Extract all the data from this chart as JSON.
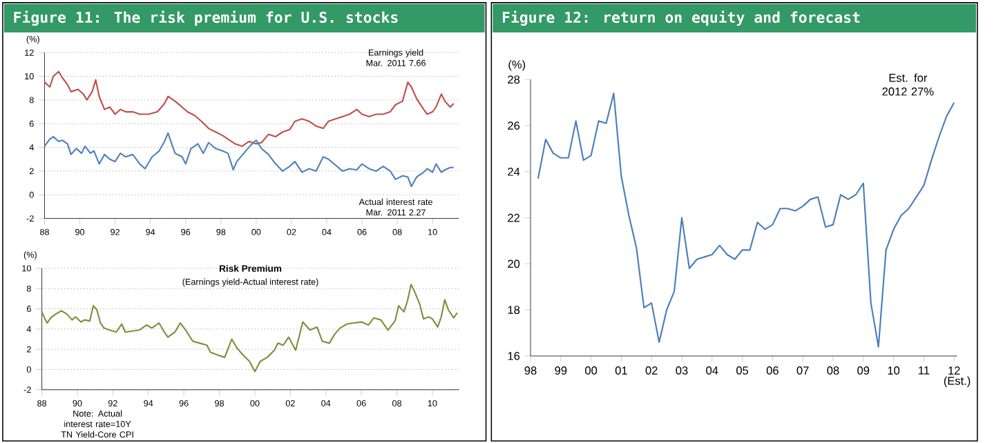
{
  "chart_data": [
    {
      "type": "line",
      "title": "Figure 11: The risk premium for U.S. stocks",
      "ylabel": "(%)",
      "xlim": [
        1988,
        2011.5
      ],
      "ylim": [
        -2,
        12
      ],
      "yticks": [
        -2,
        0,
        2,
        4,
        6,
        8,
        10,
        12
      ],
      "xticks": [
        {
          "value": 1988,
          "label": "88"
        },
        {
          "value": 1990,
          "label": "90"
        },
        {
          "value": 1992,
          "label": "92"
        },
        {
          "value": 1994,
          "label": "94"
        },
        {
          "value": 1996,
          "label": "96"
        },
        {
          "value": 1998,
          "label": "98"
        },
        {
          "value": 2000,
          "label": "00"
        },
        {
          "value": 2002,
          "label": "02"
        },
        {
          "value": 2004,
          "label": "04"
        },
        {
          "value": 2006,
          "label": "06"
        },
        {
          "value": 2008,
          "label": "08"
        },
        {
          "value": 2010,
          "label": "10"
        }
      ],
      "grid": "y",
      "annotations": [
        "Earnings yield Mar. 2011 7.66",
        "Actual interest rate Mar. 2011 2.27"
      ],
      "series": [
        {
          "color": "#c0504d",
          "x": [
            1988.0,
            1988.3,
            1988.5,
            1988.8,
            1989.0,
            1989.3,
            1989.5,
            1989.9,
            1990.2,
            1990.4,
            1990.7,
            1990.9,
            1991.1,
            1991.4,
            1991.7,
            1992.0,
            1992.3,
            1992.6,
            1993.0,
            1993.4,
            1993.9,
            1994.4,
            1994.8,
            1995.0,
            1995.4,
            1995.8,
            1996.1,
            1996.5,
            1996.9,
            1997.3,
            1997.7,
            1998.1,
            1998.4,
            1998.8,
            1999.2,
            1999.6,
            2000.0,
            2000.3,
            2000.7,
            2001.1,
            2001.5,
            2001.9,
            2002.2,
            2002.6,
            2003.0,
            2003.4,
            2003.8,
            2004.1,
            2004.5,
            2004.9,
            2005.3,
            2005.7,
            2006.0,
            2006.4,
            2006.8,
            2007.2,
            2007.6,
            2007.9,
            2008.3,
            2008.6,
            2008.8,
            2009.1,
            2009.5,
            2009.7,
            2010.0,
            2010.2,
            2010.5,
            2010.7,
            2011.0,
            2011.2
          ],
          "values": [
            9.5,
            9.1,
            10.0,
            10.4,
            9.9,
            9.3,
            8.7,
            8.9,
            8.5,
            8.0,
            8.7,
            9.7,
            8.3,
            7.2,
            7.4,
            6.8,
            7.2,
            7.0,
            7.0,
            6.8,
            6.8,
            7.0,
            7.7,
            8.3,
            7.9,
            7.4,
            7.0,
            6.7,
            6.2,
            5.6,
            5.3,
            5.0,
            4.7,
            4.3,
            4.1,
            4.5,
            4.3,
            4.4,
            5.1,
            4.9,
            5.3,
            5.5,
            6.2,
            6.4,
            6.2,
            5.8,
            5.6,
            6.2,
            6.4,
            6.6,
            6.8,
            7.2,
            6.8,
            6.6,
            6.8,
            6.8,
            7.0,
            7.6,
            7.9,
            9.5,
            9.1,
            8.1,
            7.2,
            6.8,
            7.0,
            7.4,
            8.5,
            7.9,
            7.4,
            7.7
          ]
        },
        {
          "color": "#4f81bd",
          "x": [
            1988.0,
            1988.3,
            1988.5,
            1988.8,
            1989.0,
            1989.3,
            1989.5,
            1989.8,
            1990.1,
            1990.3,
            1990.6,
            1990.8,
            1991.1,
            1991.4,
            1991.7,
            1992.0,
            1992.3,
            1992.6,
            1993.0,
            1993.4,
            1993.7,
            1994.1,
            1994.5,
            1994.8,
            1995.0,
            1995.4,
            1995.8,
            1996.0,
            1996.3,
            1996.7,
            1997.0,
            1997.3,
            1997.7,
            1998.1,
            1998.4,
            1998.7,
            1998.9,
            1999.3,
            1999.7,
            2000.0,
            2000.3,
            2000.7,
            2001.1,
            2001.5,
            2001.9,
            2002.2,
            2002.6,
            2003.0,
            2003.4,
            2003.8,
            2004.1,
            2004.5,
            2004.9,
            2005.3,
            2005.7,
            2006.0,
            2006.4,
            2006.8,
            2007.2,
            2007.6,
            2007.9,
            2008.3,
            2008.6,
            2008.8,
            2009.1,
            2009.5,
            2009.7,
            2010.0,
            2010.2,
            2010.5,
            2010.7,
            2011.0,
            2011.2
          ],
          "values": [
            4.1,
            4.7,
            4.9,
            4.5,
            4.6,
            4.3,
            3.4,
            3.9,
            3.5,
            4.1,
            3.5,
            3.7,
            2.6,
            3.4,
            3.0,
            2.8,
            3.5,
            3.2,
            3.4,
            2.6,
            2.2,
            3.2,
            3.7,
            4.5,
            5.2,
            3.5,
            3.2,
            2.6,
            3.9,
            4.3,
            3.5,
            4.4,
            3.9,
            3.7,
            3.5,
            2.1,
            2.8,
            3.5,
            4.2,
            4.6,
            3.9,
            3.4,
            2.6,
            2.0,
            2.4,
            2.8,
            1.9,
            2.2,
            2.0,
            3.2,
            3.0,
            2.5,
            2.0,
            2.2,
            2.1,
            2.6,
            2.2,
            2.0,
            2.4,
            2.0,
            1.3,
            1.6,
            1.5,
            0.7,
            1.5,
            1.9,
            2.2,
            1.9,
            2.6,
            1.9,
            2.1,
            2.3,
            2.3
          ]
        }
      ]
    },
    {
      "type": "line",
      "title": "Risk Premium",
      "subtitle": "(Earnings yield-Actual interest rate)",
      "ylabel": "(%)",
      "xlim": [
        1988,
        2011.5
      ],
      "ylim": [
        -2,
        10
      ],
      "yticks": [
        -2,
        0,
        2,
        4,
        6,
        8,
        10
      ],
      "xticks": [
        {
          "value": 1988,
          "label": "88"
        },
        {
          "value": 1990,
          "label": "90"
        },
        {
          "value": 1992,
          "label": "92"
        },
        {
          "value": 1994,
          "label": "94"
        },
        {
          "value": 1996,
          "label": "96"
        },
        {
          "value": 1998,
          "label": "98"
        },
        {
          "value": 2000,
          "label": "00"
        },
        {
          "value": 2002,
          "label": "02"
        },
        {
          "value": 2004,
          "label": "04"
        },
        {
          "value": 2006,
          "label": "06"
        },
        {
          "value": 2008,
          "label": "08"
        },
        {
          "value": 2010,
          "label": "10"
        }
      ],
      "grid": "y",
      "annotations": [
        "Note: Actual interest rate=10Y TN Yield-Core CPI"
      ],
      "series": [
        {
          "color": "#77933c",
          "x": [
            1988.0,
            1988.2,
            1988.3,
            1988.5,
            1988.8,
            1989.1,
            1989.4,
            1989.7,
            1989.9,
            1990.2,
            1990.4,
            1990.7,
            1990.9,
            1991.1,
            1991.3,
            1991.5,
            1991.8,
            1992.2,
            1992.5,
            1992.7,
            1993.1,
            1993.5,
            1993.9,
            1994.2,
            1994.6,
            1994.9,
            1995.1,
            1995.5,
            1995.8,
            1996.1,
            1996.5,
            1996.9,
            1997.3,
            1997.5,
            1997.8,
            1998.3,
            1998.7,
            1999.0,
            1999.3,
            1999.7,
            2000.0,
            2000.3,
            2000.7,
            2001.1,
            2001.3,
            2001.6,
            2001.9,
            2002.3,
            2002.7,
            2003.1,
            2003.5,
            2003.8,
            2004.2,
            2004.5,
            2004.8,
            2005.2,
            2005.6,
            2006.0,
            2006.4,
            2006.7,
            2007.1,
            2007.5,
            2007.9,
            2008.1,
            2008.4,
            2008.6,
            2008.8,
            2009.0,
            2009.3,
            2009.5,
            2009.8,
            2010.0,
            2010.3,
            2010.5,
            2010.7,
            2010.9,
            2011.2,
            2011.4
          ],
          "values": [
            5.7,
            4.9,
            4.6,
            5.1,
            5.5,
            5.8,
            5.5,
            4.9,
            5.2,
            4.7,
            4.9,
            4.8,
            6.3,
            5.9,
            4.6,
            4.1,
            3.9,
            3.7,
            4.5,
            3.7,
            3.8,
            3.9,
            4.4,
            4.1,
            4.6,
            3.7,
            3.2,
            3.7,
            4.6,
            3.9,
            2.8,
            2.6,
            2.4,
            1.7,
            1.5,
            1.2,
            3.0,
            2.1,
            1.5,
            0.8,
            -0.2,
            0.8,
            1.2,
            1.9,
            2.6,
            2.4,
            3.2,
            1.9,
            4.7,
            3.9,
            4.2,
            2.8,
            2.6,
            3.5,
            4.1,
            4.5,
            4.6,
            4.7,
            4.4,
            5.1,
            4.9,
            3.9,
            4.8,
            6.3,
            5.7,
            6.8,
            8.4,
            7.7,
            6.4,
            5.0,
            5.2,
            5.0,
            4.2,
            5.2,
            6.9,
            5.9,
            5.1,
            5.6
          ]
        }
      ]
    },
    {
      "type": "line",
      "title": "Figure 12: return on equity and forecast",
      "ylabel": "(%)",
      "xlim": [
        1998,
        2012.1
      ],
      "ylim": [
        16,
        28
      ],
      "yticks": [
        16,
        18,
        20,
        22,
        24,
        26,
        28
      ],
      "xticks": [
        {
          "value": 1998,
          "label": "98"
        },
        {
          "value": 1999,
          "label": "99"
        },
        {
          "value": 2000,
          "label": "00"
        },
        {
          "value": 2001,
          "label": "01"
        },
        {
          "value": 2002,
          "label": "02"
        },
        {
          "value": 2003,
          "label": "03"
        },
        {
          "value": 2004,
          "label": "04"
        },
        {
          "value": 2005,
          "label": "05"
        },
        {
          "value": 2006,
          "label": "06"
        },
        {
          "value": 2007,
          "label": "07"
        },
        {
          "value": 2008,
          "label": "08"
        },
        {
          "value": 2009,
          "label": "09"
        },
        {
          "value": 2010,
          "label": "10"
        },
        {
          "value": 2011,
          "label": "11"
        },
        {
          "value": 2012,
          "label": "12"
        }
      ],
      "annotations": [
        {
          "text": "Est. for 2012 27%",
          "x": 2012,
          "y": 27
        },
        "(Est.)"
      ],
      "series": [
        {
          "color": "#4a7ebb",
          "x": [
            1998.25,
            1998.5,
            1998.75,
            1999.0,
            1999.25,
            1999.5,
            1999.75,
            2000.0,
            2000.25,
            2000.5,
            2000.75,
            2001.0,
            2001.25,
            2001.5,
            2001.75,
            2002.0,
            2002.25,
            2002.5,
            2002.75,
            2003.0,
            2003.25,
            2003.5,
            2003.75,
            2004.0,
            2004.25,
            2004.5,
            2004.75,
            2005.0,
            2005.25,
            2005.5,
            2005.75,
            2006.0,
            2006.25,
            2006.5,
            2006.75,
            2007.0,
            2007.25,
            2007.5,
            2007.75,
            2008.0,
            2008.25,
            2008.5,
            2008.75,
            2009.0,
            2009.25,
            2009.5,
            2009.75,
            2010.0,
            2010.25,
            2010.5,
            2010.75,
            2011.0,
            2011.25,
            2011.5,
            2011.75,
            2012.0
          ],
          "values": [
            23.7,
            25.4,
            24.8,
            24.6,
            24.6,
            26.2,
            24.5,
            24.7,
            26.2,
            26.1,
            27.4,
            23.8,
            22.1,
            20.7,
            18.1,
            18.3,
            16.6,
            18.0,
            18.8,
            22.0,
            19.8,
            20.2,
            20.3,
            20.4,
            20.8,
            20.4,
            20.2,
            20.6,
            20.6,
            21.8,
            21.5,
            21.7,
            22.4,
            22.4,
            22.3,
            22.5,
            22.8,
            22.9,
            21.6,
            21.7,
            23.0,
            22.8,
            23.0,
            23.5,
            18.3,
            16.4,
            20.6,
            21.5,
            22.1,
            22.4,
            22.9,
            23.4,
            24.5,
            25.5,
            26.4,
            27.0
          ]
        }
      ]
    }
  ]
}
